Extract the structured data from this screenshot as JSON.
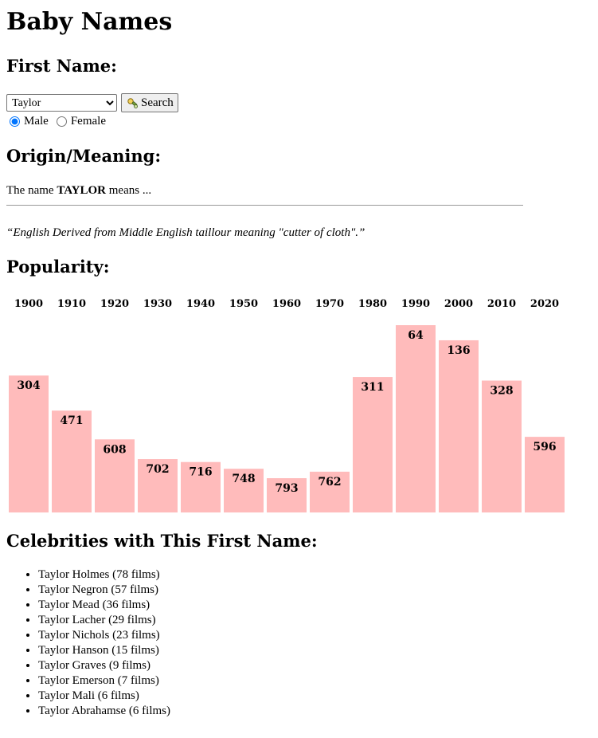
{
  "title": "Baby Names",
  "first_name_section": {
    "heading": "First Name:",
    "selected_name": "Taylor",
    "search_label": "Search",
    "genders": [
      {
        "label": "Male",
        "checked": true
      },
      {
        "label": "Female",
        "checked": false
      }
    ]
  },
  "origin_section": {
    "heading": "Origin/Meaning:",
    "intro_prefix": "The name ",
    "intro_name": "TAYLOR",
    "intro_suffix": " means ...",
    "meaning": "“English Derived from Middle English taillour meaning \"cutter of cloth\".”"
  },
  "popularity_section": {
    "heading": "Popularity:"
  },
  "chart_data": {
    "type": "bar",
    "categories": [
      "1900",
      "1910",
      "1920",
      "1930",
      "1940",
      "1950",
      "1960",
      "1970",
      "1980",
      "1990",
      "2000",
      "2010",
      "2020"
    ],
    "values": [
      304,
      471,
      608,
      702,
      716,
      748,
      793,
      762,
      311,
      64,
      136,
      328,
      596
    ],
    "bar_color": "#ffbbbb",
    "value_scale": "rank (lower value = taller bar)"
  },
  "celebrities_section": {
    "heading": "Celebrities with This First Name:",
    "items": [
      "Taylor Holmes (78 films)",
      "Taylor Negron (57 films)",
      "Taylor Mead (36 films)",
      "Taylor Lacher (29 films)",
      "Taylor Nichols (23 films)",
      "Taylor Hanson (15 films)",
      "Taylor Graves (9 films)",
      "Taylor Emerson (7 films)",
      "Taylor Mali (6 films)",
      "Taylor Abrahamse (6 films)"
    ]
  }
}
